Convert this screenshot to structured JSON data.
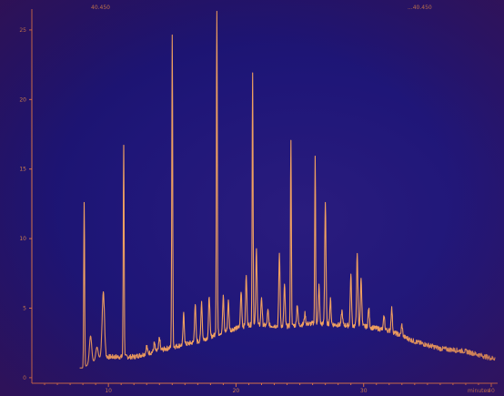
{
  "header": {
    "left_label": "40.450",
    "right_label": "...40.450"
  },
  "colors": {
    "trace": "#f0a060",
    "axis": "#e07a4a",
    "text": "#d9894f",
    "background": "#1f1678"
  },
  "chart_data": {
    "type": "line",
    "title": "",
    "xlabel": "minutes",
    "ylabel": "",
    "xlim": [
      4.0,
      40.5
    ],
    "ylim": [
      -0.4,
      26.5
    ],
    "x_ticks": [
      10,
      20,
      30,
      40
    ],
    "y_ticks": [
      0,
      5,
      10,
      15,
      20,
      25
    ],
    "grid": false,
    "series": [
      {
        "baseline_points": [
          [
            8.0,
            0.7
          ],
          [
            9.5,
            1.5
          ],
          [
            12,
            1.5
          ],
          [
            15,
            2.2
          ],
          [
            17,
            2.6
          ],
          [
            19,
            3.3
          ],
          [
            21,
            3.8
          ],
          [
            24,
            3.7
          ],
          [
            26,
            3.9
          ],
          [
            28,
            3.8
          ],
          [
            30,
            3.7
          ],
          [
            32,
            3.4
          ],
          [
            34,
            2.6
          ],
          [
            36,
            2.1
          ],
          [
            38,
            1.9
          ],
          [
            40,
            1.4
          ]
        ],
        "peaks": [
          {
            "x": 8.1,
            "y": 12.6
          },
          {
            "x": 8.6,
            "y": 3.0
          },
          {
            "x": 9.1,
            "y": 2.2
          },
          {
            "x": 9.6,
            "y": 6.2
          },
          {
            "x": 11.2,
            "y": 16.8
          },
          {
            "x": 13.0,
            "y": 2.3
          },
          {
            "x": 13.6,
            "y": 2.5
          },
          {
            "x": 14.0,
            "y": 2.9
          },
          {
            "x": 15.0,
            "y": 24.5
          },
          {
            "x": 15.9,
            "y": 4.6
          },
          {
            "x": 16.8,
            "y": 5.3
          },
          {
            "x": 17.3,
            "y": 5.5
          },
          {
            "x": 17.9,
            "y": 5.9
          },
          {
            "x": 18.5,
            "y": 26.5
          },
          {
            "x": 19.0,
            "y": 5.8
          },
          {
            "x": 19.4,
            "y": 5.5
          },
          {
            "x": 20.4,
            "y": 6.2
          },
          {
            "x": 20.8,
            "y": 7.3
          },
          {
            "x": 21.3,
            "y": 22.0
          },
          {
            "x": 21.6,
            "y": 9.2
          },
          {
            "x": 22.0,
            "y": 5.8
          },
          {
            "x": 22.5,
            "y": 4.8
          },
          {
            "x": 23.4,
            "y": 8.9
          },
          {
            "x": 23.8,
            "y": 6.7
          },
          {
            "x": 24.3,
            "y": 17.2
          },
          {
            "x": 24.8,
            "y": 5.3
          },
          {
            "x": 25.4,
            "y": 4.6
          },
          {
            "x": 26.2,
            "y": 15.8
          },
          {
            "x": 26.5,
            "y": 6.6
          },
          {
            "x": 27.0,
            "y": 12.6
          },
          {
            "x": 27.4,
            "y": 5.6
          },
          {
            "x": 28.3,
            "y": 4.8
          },
          {
            "x": 29.0,
            "y": 7.4
          },
          {
            "x": 29.5,
            "y": 8.8
          },
          {
            "x": 29.8,
            "y": 7.2
          },
          {
            "x": 30.4,
            "y": 5.0
          },
          {
            "x": 31.6,
            "y": 4.4
          },
          {
            "x": 32.2,
            "y": 5.0
          },
          {
            "x": 33.0,
            "y": 3.8
          }
        ]
      }
    ],
    "annotations": [
      "minutes"
    ]
  }
}
